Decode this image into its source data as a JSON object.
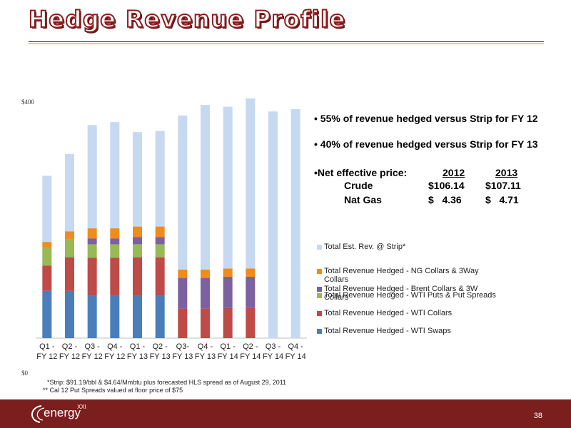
{
  "slide": {
    "title": "Hedge Revenue Profile",
    "page_number": "38"
  },
  "bullets": [
    "• 55% of revenue hedged versus Strip for FY 12",
    "• 40% of revenue hedged versus Strip for FY 13"
  ],
  "price_table": {
    "label": "•Net effective price:",
    "col1": "2012",
    "col2": "2013",
    "rows": [
      {
        "name": "Crude",
        "v1": "$106.14",
        "v2": "$107.11"
      },
      {
        "name": "Nat Gas",
        "v1": "$   4.36",
        "v2": "$   4.71"
      }
    ]
  },
  "footnotes": [
    "*Strip:  $91.19/bbl & $4.64/Mmbtu plus forecasted HLS spread as of August 29, 2011",
    "** Cal 12 Put Spreads valued at floor price of $75"
  ],
  "logo": {
    "text": "energy",
    "sup": "XXI"
  },
  "chart_data": {
    "type": "bar",
    "stacked": true,
    "y_ticks": [
      "$400",
      "$0"
    ],
    "ylim": [
      0,
      400
    ],
    "categories": [
      "Q1 - FY 12",
      "Q2 - FY 12",
      "Q3 - FY 12",
      "Q4 - FY 12",
      "Q1 - FY 13",
      "Q2 - FY 13",
      "Q3- FY 13",
      "Q4 - FY 13",
      "Q1 - FY 14",
      "Q2 - FY 14",
      "Q3 - FY 14",
      "Q4 - FY 14"
    ],
    "category_labels": [
      [
        "Q1 -",
        "FY 12"
      ],
      [
        "Q2 -",
        "FY 12"
      ],
      [
        "Q3 -",
        "FY 12"
      ],
      [
        "Q4 -",
        "FY 12"
      ],
      [
        "Q1 -",
        "FY 13"
      ],
      [
        "Q2 -",
        "FY 13"
      ],
      [
        "Q3-",
        "FY 13"
      ],
      [
        "Q4 -",
        "FY 13"
      ],
      [
        "Q1 -",
        "FY 14"
      ],
      [
        "Q2 -",
        "FY 14"
      ],
      [
        "Q3 -",
        "FY 14"
      ],
      [
        "Q4 -",
        "FY 14"
      ]
    ],
    "series": [
      {
        "name": "Total Revenue Hedged - WTI Swaps",
        "color": "#4a7ebb",
        "values": [
          80,
          80,
          72,
          72,
          72,
          72,
          0,
          0,
          0,
          0,
          0,
          0
        ]
      },
      {
        "name": "Total Revenue Hedged - WTI Collars",
        "color": "#be4b48",
        "values": [
          43,
          57,
          64,
          64,
          65,
          65,
          50,
          50,
          51,
          51,
          0,
          0
        ]
      },
      {
        "name": "Total Revenue Hedged - WTI Puts & Put Spreads",
        "color": "#98b954",
        "values": [
          30,
          30,
          23,
          23,
          22,
          22,
          0,
          0,
          0,
          0,
          0,
          0
        ]
      },
      {
        "name": "Total Revenue Hedged - Brent Collars & 3W Collars",
        "color": "#7d60a0",
        "values": [
          0,
          0,
          10,
          10,
          12,
          12,
          52,
          52,
          53,
          53,
          0,
          0
        ]
      },
      {
        "name": "Total Revenue Hedged - NG Collars & 3Way Collars",
        "color": "#f08b1d",
        "values": [
          10,
          14,
          17,
          17,
          18,
          18,
          14,
          14,
          14,
          14,
          0,
          0
        ]
      },
      {
        "name": "Total Est. Rev. @ Strip*",
        "color": "#c6d9f1",
        "values": [
          112,
          131,
          175,
          180,
          160,
          162,
          261,
          279,
          274,
          288,
          384,
          388
        ]
      }
    ],
    "legend_order": [
      "Total Est. Rev. @ Strip*",
      "Total Revenue Hedged - NG Collars & 3Way Collars",
      "Total Revenue Hedged - Brent Collars & 3W Collars",
      "Total Revenue Hedged - WTI Puts & Put Spreads",
      "Total Revenue Hedged - WTI Collars",
      "Total Revenue Hedged - WTI Swaps"
    ],
    "legend_display": [
      [
        "Total Est. Rev. @ Strip*"
      ],
      [
        "Total Revenue Hedged - NG Collars & 3Way",
        "Collars"
      ],
      [
        "Total Revenue Hedged - Brent Collars & 3W",
        "Collars"
      ],
      [
        "Total Revenue Hedged - WTI Puts & Put Spreads"
      ],
      [
        "Total Revenue Hedged - WTI Collars"
      ],
      [
        "Total Revenue Hedged - WTI Swaps"
      ]
    ],
    "legend_position": "right"
  }
}
